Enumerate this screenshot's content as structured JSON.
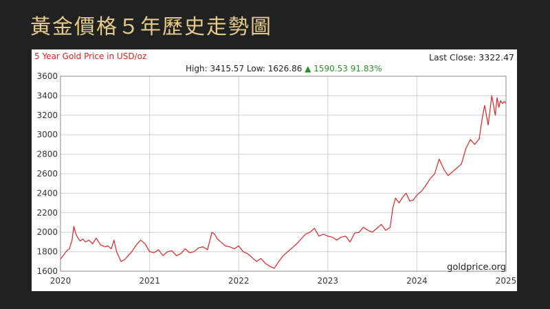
{
  "slide": {
    "title": "黃金價格５年歷史走勢圖"
  },
  "chart_data": {
    "type": "line",
    "title": "5 Year Gold Price in USD/oz",
    "last_close_label": "Last Close:",
    "last_close": "3322.47",
    "high_label": "High:",
    "high": "3415.57",
    "low_label": "Low:",
    "low": "1626.86",
    "change_icon": "up-triangle-icon",
    "change_symbol": "▲",
    "change": "1590.53",
    "change_pct": "91.83%",
    "watermark": "goldprice.org",
    "line_color": "#e02020",
    "grid": true,
    "xlim": [
      2020,
      2025
    ],
    "ylim": [
      1600,
      3600
    ],
    "x_ticks": [
      "2020",
      "2021",
      "2022",
      "2023",
      "2024",
      "2025"
    ],
    "y_ticks": [
      "3600",
      "3400",
      "3200",
      "3000",
      "2800",
      "2600",
      "2400",
      "2200",
      "2000",
      "1800",
      "1600"
    ],
    "series": [
      {
        "x": [
          2020.0,
          2020.03,
          2020.07,
          2020.1,
          2020.13,
          2020.15,
          2020.17,
          2020.19,
          2020.22,
          2020.25,
          2020.28,
          2020.32,
          2020.36,
          2020.4,
          2020.45,
          2020.5,
          2020.53,
          2020.57,
          2020.6,
          2020.63,
          2020.68,
          2020.72,
          2020.76,
          2020.8,
          2020.85,
          2020.9,
          2020.95,
          2021.0,
          2021.05,
          2021.1,
          2021.15,
          2021.2,
          2021.25,
          2021.3,
          2021.35,
          2021.4,
          2021.45,
          2021.5,
          2021.55,
          2021.6,
          2021.65,
          2021.7,
          2021.73,
          2021.76,
          2021.8,
          2021.85,
          2021.9,
          2021.95,
          2022.0,
          2022.05,
          2022.1,
          2022.15,
          2022.2,
          2022.25,
          2022.3,
          2022.35,
          2022.4,
          2022.45,
          2022.5,
          2022.55,
          2022.6,
          2022.65,
          2022.7,
          2022.75,
          2022.8,
          2022.85,
          2022.9,
          2022.95,
          2023.0,
          2023.05,
          2023.1,
          2023.15,
          2023.2,
          2023.25,
          2023.3,
          2023.35,
          2023.4,
          2023.45,
          2023.5,
          2023.55,
          2023.6,
          2023.65,
          2023.7,
          2023.73,
          2023.76,
          2023.8,
          2023.84,
          2023.88,
          2023.92,
          2023.96,
          2024.0,
          2024.05,
          2024.1,
          2024.15,
          2024.2,
          2024.25,
          2024.3,
          2024.35,
          2024.4,
          2024.45,
          2024.5,
          2024.55,
          2024.6,
          2024.65,
          2024.7,
          2024.73,
          2024.76,
          2024.8,
          2024.84,
          2024.86,
          2024.88,
          2024.9,
          2024.92,
          2024.94,
          2024.96,
          2024.98,
          2025.0
        ],
        "y": [
          1725,
          1760,
          1810,
          1830,
          1920,
          2060,
          1990,
          1950,
          1910,
          1930,
          1900,
          1920,
          1880,
          1940,
          1870,
          1850,
          1860,
          1830,
          1920,
          1800,
          1700,
          1720,
          1760,
          1800,
          1870,
          1920,
          1880,
          1800,
          1790,
          1820,
          1760,
          1800,
          1810,
          1760,
          1780,
          1830,
          1790,
          1800,
          1840,
          1850,
          1820,
          2000,
          1980,
          1930,
          1900,
          1860,
          1850,
          1830,
          1860,
          1800,
          1780,
          1740,
          1700,
          1730,
          1680,
          1650,
          1630,
          1700,
          1760,
          1800,
          1840,
          1880,
          1930,
          1980,
          2000,
          2040,
          1960,
          1980,
          1960,
          1950,
          1920,
          1950,
          1960,
          1900,
          1990,
          2000,
          2050,
          2020,
          2000,
          2040,
          2080,
          2020,
          2050,
          2250,
          2350,
          2300,
          2360,
          2400,
          2320,
          2330,
          2380,
          2420,
          2480,
          2550,
          2600,
          2750,
          2650,
          2580,
          2620,
          2660,
          2700,
          2860,
          2950,
          2900,
          2960,
          3150,
          3300,
          3100,
          3400,
          3300,
          3200,
          3380,
          3280,
          3350,
          3320,
          3340,
          3322
        ]
      }
    ]
  }
}
